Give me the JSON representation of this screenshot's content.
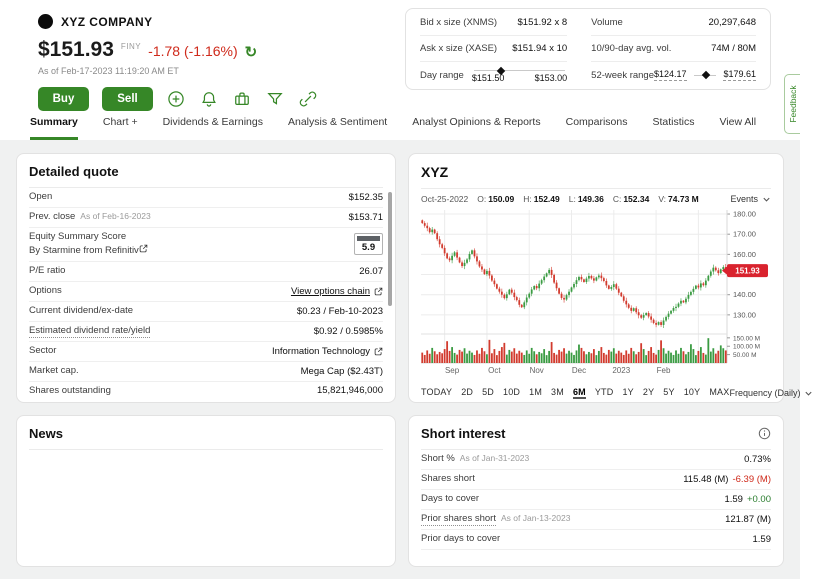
{
  "header": {
    "company_name": "XYZ COMPANY",
    "price": "$151.93",
    "exchange_code": "FINY",
    "change": "-1.78 (-1.16%)",
    "as_of": "As of Feb-17-2023  11:19:20 AM ET",
    "buy_label": "Buy",
    "sell_label": "Sell"
  },
  "feedback_label": "Feedback",
  "quote_stats": {
    "columns": [
      [
        {
          "type": "kv",
          "label": "Bid x size (XNMS)",
          "value": "$151.92 x 8"
        },
        {
          "type": "kv",
          "label": "Ask x size (XASE)",
          "value": "$151.94 x 10"
        },
        {
          "type": "range",
          "style": "below",
          "label": "Day range",
          "min": "$151.50",
          "max": "$153.00",
          "pct": 30
        }
      ],
      [
        {
          "type": "kv",
          "label": "Volume",
          "value": "20,297,648"
        },
        {
          "type": "kv",
          "label": "10/90-day avg. vol.",
          "value": "74M / 80M"
        },
        {
          "type": "range",
          "style": "inline",
          "label": "52-week range",
          "min": "$124.17",
          "max": "$179.61",
          "pct": 56,
          "underline": true
        }
      ]
    ]
  },
  "tabs": [
    {
      "label": "Summary",
      "active": true
    },
    {
      "label": "Chart +"
    },
    {
      "label": "Dividends & Earnings"
    },
    {
      "label": "Analysis & Sentiment"
    },
    {
      "label": "Analyst Opinions & Reports"
    },
    {
      "label": "Comparisons"
    },
    {
      "label": "Statistics"
    },
    {
      "label": "View All"
    }
  ],
  "detailed_quote": {
    "title": "Detailed quote",
    "rows": [
      {
        "label": "Open",
        "value": "$152.35"
      },
      {
        "label": "Prev. close",
        "suffix": "As of Feb-16-2023",
        "value": "$153.71"
      },
      {
        "label": "Equity Summary Score",
        "label2": "By Starmine from Refinitiv",
        "ext2": true,
        "score": "5.9"
      },
      {
        "label": "P/E ratio",
        "value": "26.07"
      },
      {
        "label": "Options",
        "link": "View options chain",
        "ext": true
      },
      {
        "label": "Current dividend/ex-date",
        "value": "$0.23 / Feb-10-2023"
      },
      {
        "label": "Estimated dividend rate/yield",
        "dotted": true,
        "value": "$0.92 / 0.5985%"
      },
      {
        "label": "Sector",
        "value": "Information Technology",
        "ext": true
      },
      {
        "label": "Market cap.",
        "value": "Mega Cap ($2.43T)"
      },
      {
        "label": "Shares outstanding",
        "value": "15,821,946,000",
        "clipped": true
      }
    ]
  },
  "news": {
    "title": "News"
  },
  "chart_card": {
    "title": "XYZ",
    "events_label": "Events",
    "readout": {
      "date": "Oct-25-2022",
      "items": [
        {
          "k": "O:",
          "v": "150.09"
        },
        {
          "k": "H:",
          "v": "152.49"
        },
        {
          "k": "L:",
          "v": "149.36"
        },
        {
          "k": "C:",
          "v": "152.34"
        },
        {
          "k": "V:",
          "v": "74.73 M"
        }
      ]
    },
    "ranges": [
      "TODAY",
      "2D",
      "5D",
      "10D",
      "1M",
      "3M",
      "6M",
      "YTD",
      "1Y",
      "2Y",
      "5Y",
      "10Y",
      "MAX"
    ],
    "active_range": "6M",
    "frequency_label": "Frequency (Daily)"
  },
  "chart_data": {
    "type": "candlestick",
    "title": "XYZ 6-month daily candlestick chart with volume",
    "last_price": 151.93,
    "last_price_label": "151.93",
    "price_axis": {
      "min": 122,
      "max": 182,
      "ticks": [
        180,
        170,
        160,
        150,
        140,
        130
      ],
      "tick_labels": [
        "180.00",
        "170.00",
        "160.00",
        "150.00",
        "140.00",
        "130.00"
      ]
    },
    "volume_axis": {
      "max": 155,
      "ticks": [
        {
          "v": 150,
          "label": "150.00 M"
        },
        {
          "v": 100,
          "label": "100.00 M"
        },
        {
          "v": 50,
          "label": "50.00 M"
        }
      ]
    },
    "month_gridlines": [
      9,
      26,
      43,
      60,
      77,
      94,
      111
    ],
    "month_labels": [
      {
        "i": 12,
        "label": "Sep"
      },
      {
        "i": 29,
        "label": "Oct"
      },
      {
        "i": 46,
        "label": "Nov"
      },
      {
        "i": 63,
        "label": "Dec"
      },
      {
        "i": 80,
        "label": "2023"
      },
      {
        "i": 97,
        "label": "Feb"
      }
    ],
    "closes": [
      175.5,
      174.2,
      173.0,
      171.0,
      172.3,
      170.5,
      167.5,
      165.0,
      163.2,
      160.5,
      158.0,
      157.1,
      159.3,
      161.0,
      158.4,
      156.0,
      154.2,
      155.8,
      157.5,
      160.2,
      162.0,
      159.0,
      156.5,
      154.0,
      152.5,
      150.2,
      151.8,
      149.5,
      147.0,
      145.2,
      143.0,
      141.5,
      140.0,
      138.3,
      140.2,
      142.5,
      141.0,
      138.8,
      137.3,
      135.0,
      133.8,
      136.2,
      138.6,
      140.5,
      142.6,
      144.3,
      143.2,
      145.5,
      147.2,
      149.0,
      150.6,
      152.3,
      149.8,
      146.0,
      143.2,
      140.5,
      138.4,
      137.6,
      139.8,
      141.5,
      143.6,
      145.3,
      147.2,
      148.8,
      147.6,
      146.3,
      148.0,
      149.3,
      148.1,
      147.0,
      148.6,
      149.5,
      148.2,
      146.8,
      144.6,
      142.9,
      143.8,
      145.2,
      143.0,
      141.0,
      139.2,
      137.0,
      135.2,
      133.5,
      132.0,
      133.3,
      131.3,
      129.8,
      128.6,
      129.9,
      130.9,
      129.2,
      127.6,
      126.0,
      125.1,
      126.4,
      125.0,
      127.2,
      129.0,
      130.6,
      132.0,
      133.4,
      134.0,
      135.6,
      137.0,
      136.2,
      138.0,
      139.9,
      141.4,
      142.9,
      144.5,
      143.6,
      145.6,
      144.7,
      147.0,
      149.4,
      151.5,
      153.4,
      152.1,
      150.7,
      152.6,
      153.7,
      151.93
    ],
    "volumes_m": [
      62,
      48,
      75,
      55,
      90,
      70,
      52,
      66,
      58,
      83,
      130,
      72,
      95,
      60,
      50,
      78,
      68,
      88,
      56,
      73,
      62,
      48,
      75,
      55,
      90,
      70,
      52,
      138,
      58,
      83,
      47,
      72,
      95,
      120,
      50,
      78,
      68,
      88,
      56,
      73,
      62,
      48,
      75,
      55,
      90,
      70,
      52,
      66,
      58,
      83,
      47,
      72,
      125,
      60,
      50,
      78,
      68,
      88,
      56,
      73,
      62,
      48,
      75,
      110,
      90,
      70,
      52,
      66,
      58,
      83,
      47,
      72,
      95,
      60,
      50,
      78,
      68,
      88,
      56,
      73,
      62,
      48,
      75,
      55,
      90,
      70,
      52,
      66,
      118,
      83,
      47,
      72,
      95,
      60,
      50,
      78,
      135,
      88,
      56,
      73,
      62,
      48,
      75,
      55,
      90,
      70,
      52,
      66,
      112,
      83,
      47,
      72,
      95,
      60,
      50,
      148,
      68,
      88,
      56,
      73,
      105,
      88,
      74.73
    ],
    "colors": {
      "up": "#3a9b42",
      "down": "#d23b2e",
      "tag": "#d9232e"
    }
  },
  "short_interest": {
    "title": "Short interest",
    "rows": [
      {
        "label": "Short %",
        "suffix": "As of Jan-31-2023",
        "value": "0.73%"
      },
      {
        "label": "Shares short",
        "value": "115.48 (M)",
        "delta": "-6.39 (M)",
        "delta_color": "red"
      },
      {
        "label": "Days to cover",
        "value": "1.59",
        "delta": "+0.00",
        "delta_color": "green"
      },
      {
        "label": "Prior shares short",
        "dotted": true,
        "suffix": "As of Jan-13-2023",
        "value": "121.87 (M)"
      },
      {
        "label": "Prior days to cover",
        "value": "1.59"
      }
    ]
  }
}
